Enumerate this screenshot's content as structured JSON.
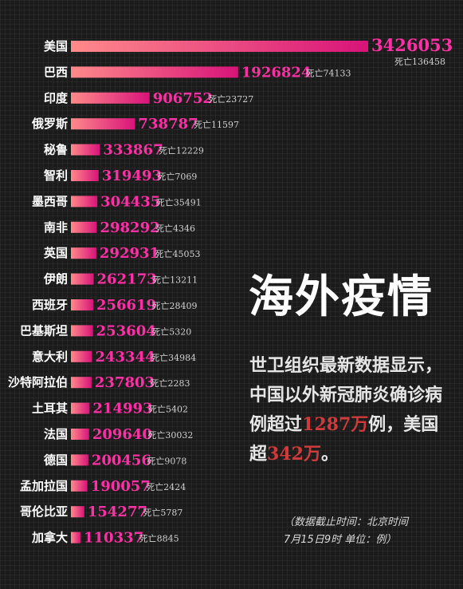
{
  "chart_data": {
    "type": "bar",
    "orientation": "horizontal",
    "categories": [
      "美国",
      "巴西",
      "印度",
      "俄罗斯",
      "秘鲁",
      "智利",
      "墨西哥",
      "南非",
      "英国",
      "伊朗",
      "西班牙",
      "巴基斯坦",
      "意大利",
      "沙特阿拉伯",
      "土耳其",
      "法国",
      "德国",
      "孟加拉国",
      "哥伦比亚",
      "加拿大"
    ],
    "values": [
      3426053,
      1926824,
      906752,
      738787,
      333867,
      319493,
      304435,
      298292,
      292931,
      262173,
      256619,
      253604,
      243344,
      237803,
      214993,
      209640,
      200456,
      190057,
      154277,
      110337
    ],
    "value_labels": [
      "3426053",
      "1926824",
      "906752",
      "738787",
      "333867",
      "319493",
      "304435",
      "298292",
      "292931",
      "262173",
      "256619",
      "253604",
      "243344",
      "237803",
      "214993",
      "209640",
      "200456",
      "190057",
      "154277",
      "110337"
    ],
    "deaths": [
      136458,
      74133,
      23727,
      11597,
      12229,
      7069,
      35491,
      4346,
      45053,
      13211,
      28409,
      5320,
      34984,
      2283,
      5402,
      30032,
      9078,
      2424,
      5787,
      8845
    ],
    "death_labels": [
      "死亡136458",
      "死亡74133",
      "死亡23727",
      "死亡11597",
      "死亡12229",
      "死亡7069",
      "死亡35491",
      "死亡4346",
      "死亡45053",
      "死亡13211",
      "死亡28409",
      "死亡5320",
      "死亡34984",
      "死亡2283",
      "死亡5402",
      "死亡30032",
      "死亡9078",
      "死亡2424",
      "死亡5787",
      "死亡8845"
    ],
    "colors": {
      "bar_start": "#ff8a8a",
      "bar_end": "#d8137a",
      "value": "#ff2fa6",
      "death": "#cfcfcf"
    }
  },
  "headline": "海外疫情",
  "description": {
    "part1": "世卫组织最新数据显示，中国以外新冠肺炎确诊病例超过",
    "num1": "1287万",
    "part2": "例，美国超",
    "num2": "342万",
    "part3": "。"
  },
  "note": {
    "line1": "（数据截止时间：北京时间",
    "line2": "7月15日9时  单位：例）"
  }
}
